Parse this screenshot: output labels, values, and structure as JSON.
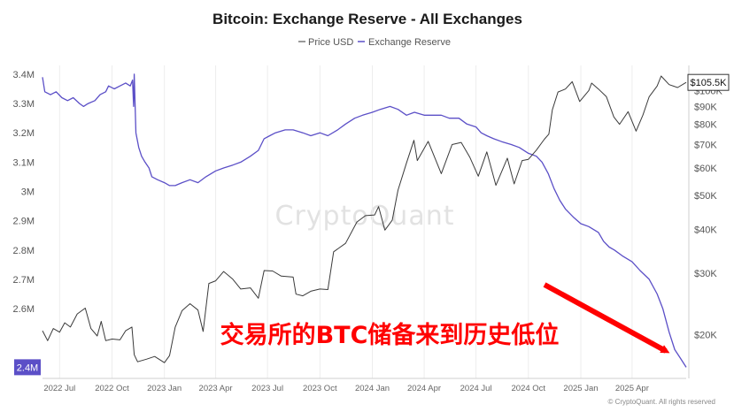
{
  "chart_data": {
    "type": "line",
    "title": "Bitcoin: Exchange Reserve - All Exchanges",
    "legend": [
      "Price USD",
      "Exchange Reserve"
    ],
    "legend_position": "top-center",
    "x_range": [
      "2022-06-01",
      "2025-07-05"
    ],
    "x_ticks": [
      {
        "date": "2022-07-01",
        "label": "2022 Jul"
      },
      {
        "date": "2022-10-01",
        "label": "2022 Oct"
      },
      {
        "date": "2023-01-01",
        "label": "2023 Jan"
      },
      {
        "date": "2023-04-01",
        "label": "2023 Apr"
      },
      {
        "date": "2023-07-01",
        "label": "2023 Jul"
      },
      {
        "date": "2023-10-01",
        "label": "2023 Oct"
      },
      {
        "date": "2024-01-01",
        "label": "2024 Jan"
      },
      {
        "date": "2024-04-01",
        "label": "2024 Apr"
      },
      {
        "date": "2024-07-01",
        "label": "2024 Jul"
      },
      {
        "date": "2024-10-01",
        "label": "2024 Oct"
      },
      {
        "date": "2025-01-01",
        "label": "2025 Jan"
      },
      {
        "date": "2025-04-01",
        "label": "2025 Apr"
      }
    ],
    "y_left": {
      "range": [
        2.38,
        3.43
      ],
      "ticks": [
        {
          "value": 3.4,
          "label": "3.4M"
        },
        {
          "value": 3.3,
          "label": "3.3M"
        },
        {
          "value": 3.2,
          "label": "3.2M"
        },
        {
          "value": 3.1,
          "label": "3.1M"
        },
        {
          "value": 3.0,
          "label": "3M"
        },
        {
          "value": 2.9,
          "label": "2.9M"
        },
        {
          "value": 2.8,
          "label": "2.8M"
        },
        {
          "value": 2.7,
          "label": "2.7M"
        },
        {
          "value": 2.6,
          "label": "2.6M"
        }
      ]
    },
    "y_right": {
      "scale": "log",
      "range": [
        15500,
        118000
      ],
      "ticks": [
        {
          "value": 100000,
          "label": "$100K"
        },
        {
          "value": 90000,
          "label": "$90K"
        },
        {
          "value": 80000,
          "label": "$80K"
        },
        {
          "value": 70000,
          "label": "$70K"
        },
        {
          "value": 60000,
          "label": "$60K"
        },
        {
          "value": 50000,
          "label": "$50K"
        },
        {
          "value": 40000,
          "label": "$40K"
        },
        {
          "value": 30000,
          "label": "$30K"
        },
        {
          "value": 20000,
          "label": "$20K"
        }
      ]
    },
    "current_price_label": "$105.5K",
    "current_reserve_label": "2.4M",
    "series": [
      {
        "name": "Exchange Reserve",
        "color": "#5b4fc7",
        "axis": "left",
        "points": [
          [
            "2022-06-01",
            3.39
          ],
          [
            "2022-06-05",
            3.34
          ],
          [
            "2022-06-15",
            3.33
          ],
          [
            "2022-06-25",
            3.34
          ],
          [
            "2022-07-05",
            3.32
          ],
          [
            "2022-07-15",
            3.31
          ],
          [
            "2022-07-25",
            3.32
          ],
          [
            "2022-08-05",
            3.3
          ],
          [
            "2022-08-12",
            3.29
          ],
          [
            "2022-08-20",
            3.3
          ],
          [
            "2022-09-01",
            3.31
          ],
          [
            "2022-09-10",
            3.33
          ],
          [
            "2022-09-20",
            3.34
          ],
          [
            "2022-09-25",
            3.36
          ],
          [
            "2022-10-05",
            3.35
          ],
          [
            "2022-10-15",
            3.36
          ],
          [
            "2022-10-25",
            3.37
          ],
          [
            "2022-11-02",
            3.36
          ],
          [
            "2022-11-06",
            3.38
          ],
          [
            "2022-11-08",
            3.29
          ],
          [
            "2022-11-09",
            3.4
          ],
          [
            "2022-11-12",
            3.2
          ],
          [
            "2022-11-17",
            3.15
          ],
          [
            "2022-11-22",
            3.12
          ],
          [
            "2022-11-28",
            3.1
          ],
          [
            "2022-12-05",
            3.08
          ],
          [
            "2022-12-10",
            3.05
          ],
          [
            "2022-12-20",
            3.04
          ],
          [
            "2023-01-01",
            3.03
          ],
          [
            "2023-01-10",
            3.02
          ],
          [
            "2023-01-20",
            3.02
          ],
          [
            "2023-02-01",
            3.03
          ],
          [
            "2023-02-15",
            3.04
          ],
          [
            "2023-03-01",
            3.03
          ],
          [
            "2023-03-15",
            3.05
          ],
          [
            "2023-04-01",
            3.07
          ],
          [
            "2023-04-15",
            3.08
          ],
          [
            "2023-05-01",
            3.09
          ],
          [
            "2023-05-15",
            3.1
          ],
          [
            "2023-06-01",
            3.12
          ],
          [
            "2023-06-15",
            3.14
          ],
          [
            "2023-06-25",
            3.18
          ],
          [
            "2023-07-05",
            3.19
          ],
          [
            "2023-07-15",
            3.2
          ],
          [
            "2023-08-01",
            3.21
          ],
          [
            "2023-08-15",
            3.21
          ],
          [
            "2023-09-01",
            3.2
          ],
          [
            "2023-09-15",
            3.19
          ],
          [
            "2023-10-01",
            3.2
          ],
          [
            "2023-10-15",
            3.19
          ],
          [
            "2023-11-01",
            3.21
          ],
          [
            "2023-11-15",
            3.23
          ],
          [
            "2023-12-01",
            3.25
          ],
          [
            "2023-12-15",
            3.26
          ],
          [
            "2024-01-01",
            3.27
          ],
          [
            "2024-01-15",
            3.28
          ],
          [
            "2024-02-01",
            3.29
          ],
          [
            "2024-02-15",
            3.28
          ],
          [
            "2024-03-01",
            3.26
          ],
          [
            "2024-03-15",
            3.27
          ],
          [
            "2024-04-01",
            3.26
          ],
          [
            "2024-04-15",
            3.26
          ],
          [
            "2024-05-01",
            3.26
          ],
          [
            "2024-05-15",
            3.25
          ],
          [
            "2024-06-01",
            3.25
          ],
          [
            "2024-06-15",
            3.23
          ],
          [
            "2024-07-01",
            3.22
          ],
          [
            "2024-07-10",
            3.2
          ],
          [
            "2024-07-20",
            3.19
          ],
          [
            "2024-08-01",
            3.18
          ],
          [
            "2024-08-15",
            3.17
          ],
          [
            "2024-09-01",
            3.16
          ],
          [
            "2024-09-15",
            3.15
          ],
          [
            "2024-10-01",
            3.13
          ],
          [
            "2024-10-15",
            3.12
          ],
          [
            "2024-10-25",
            3.1
          ],
          [
            "2024-11-05",
            3.06
          ],
          [
            "2024-11-15",
            3.01
          ],
          [
            "2024-11-25",
            2.97
          ],
          [
            "2024-12-05",
            2.94
          ],
          [
            "2024-12-20",
            2.91
          ],
          [
            "2025-01-01",
            2.89
          ],
          [
            "2025-01-15",
            2.88
          ],
          [
            "2025-02-01",
            2.86
          ],
          [
            "2025-02-10",
            2.83
          ],
          [
            "2025-02-20",
            2.81
          ],
          [
            "2025-03-01",
            2.8
          ],
          [
            "2025-03-15",
            2.78
          ],
          [
            "2025-04-01",
            2.76
          ],
          [
            "2025-04-15",
            2.73
          ],
          [
            "2025-05-01",
            2.7
          ],
          [
            "2025-05-15",
            2.65
          ],
          [
            "2025-05-25",
            2.6
          ],
          [
            "2025-06-05",
            2.52
          ],
          [
            "2025-06-15",
            2.46
          ],
          [
            "2025-06-25",
            2.43
          ],
          [
            "2025-07-05",
            2.4
          ]
        ]
      },
      {
        "name": "Price USD",
        "color": "#3a3a3a",
        "axis": "right",
        "points": [
          [
            "2022-06-01",
            20500
          ],
          [
            "2022-06-10",
            19200
          ],
          [
            "2022-06-20",
            20800
          ],
          [
            "2022-07-01",
            20300
          ],
          [
            "2022-07-10",
            21600
          ],
          [
            "2022-07-20",
            21000
          ],
          [
            "2022-08-01",
            22900
          ],
          [
            "2022-08-15",
            23800
          ],
          [
            "2022-08-25",
            20800
          ],
          [
            "2022-09-05",
            19800
          ],
          [
            "2022-09-12",
            21800
          ],
          [
            "2022-09-20",
            19200
          ],
          [
            "2022-10-01",
            19400
          ],
          [
            "2022-10-15",
            19300
          ],
          [
            "2022-10-25",
            20500
          ],
          [
            "2022-11-05",
            21000
          ],
          [
            "2022-11-09",
            17500
          ],
          [
            "2022-11-15",
            16700
          ],
          [
            "2022-12-01",
            17000
          ],
          [
            "2022-12-15",
            17300
          ],
          [
            "2023-01-01",
            16600
          ],
          [
            "2023-01-10",
            17400
          ],
          [
            "2023-01-20",
            21000
          ],
          [
            "2023-02-01",
            23400
          ],
          [
            "2023-02-15",
            24500
          ],
          [
            "2023-03-01",
            23500
          ],
          [
            "2023-03-10",
            20400
          ],
          [
            "2023-03-20",
            28000
          ],
          [
            "2023-04-01",
            28500
          ],
          [
            "2023-04-15",
            30300
          ],
          [
            "2023-05-01",
            28800
          ],
          [
            "2023-05-15",
            27000
          ],
          [
            "2023-06-01",
            27200
          ],
          [
            "2023-06-15",
            25400
          ],
          [
            "2023-06-25",
            30500
          ],
          [
            "2023-07-10",
            30400
          ],
          [
            "2023-07-25",
            29400
          ],
          [
            "2023-08-15",
            29200
          ],
          [
            "2023-08-20",
            26100
          ],
          [
            "2023-09-01",
            25800
          ],
          [
            "2023-09-15",
            26600
          ],
          [
            "2023-10-01",
            27000
          ],
          [
            "2023-10-15",
            26900
          ],
          [
            "2023-10-25",
            34500
          ],
          [
            "2023-11-15",
            36500
          ],
          [
            "2023-12-05",
            42000
          ],
          [
            "2023-12-20",
            43800
          ],
          [
            "2024-01-05",
            44000
          ],
          [
            "2024-01-12",
            46500
          ],
          [
            "2024-01-23",
            39800
          ],
          [
            "2024-02-05",
            42500
          ],
          [
            "2024-02-15",
            51800
          ],
          [
            "2024-03-01",
            62000
          ],
          [
            "2024-03-14",
            72000
          ],
          [
            "2024-03-20",
            63000
          ],
          [
            "2024-04-08",
            71500
          ],
          [
            "2024-04-20",
            64000
          ],
          [
            "2024-05-01",
            57800
          ],
          [
            "2024-05-20",
            70000
          ],
          [
            "2024-06-05",
            71000
          ],
          [
            "2024-06-20",
            64500
          ],
          [
            "2024-07-05",
            56800
          ],
          [
            "2024-07-20",
            66700
          ],
          [
            "2024-08-05",
            53500
          ],
          [
            "2024-08-25",
            64000
          ],
          [
            "2024-09-06",
            54000
          ],
          [
            "2024-09-20",
            63000
          ],
          [
            "2024-10-01",
            63500
          ],
          [
            "2024-10-15",
            67500
          ],
          [
            "2024-10-29",
            72500
          ],
          [
            "2024-11-06",
            75000
          ],
          [
            "2024-11-12",
            88000
          ],
          [
            "2024-11-22",
            99000
          ],
          [
            "2024-12-05",
            101000
          ],
          [
            "2024-12-17",
            106000
          ],
          [
            "2024-12-30",
            93000
          ],
          [
            "2025-01-15",
            100000
          ],
          [
            "2025-01-20",
            105000
          ],
          [
            "2025-02-01",
            101000
          ],
          [
            "2025-02-15",
            96000
          ],
          [
            "2025-02-28",
            84000
          ],
          [
            "2025-03-10",
            80000
          ],
          [
            "2025-03-25",
            87000
          ],
          [
            "2025-04-08",
            76500
          ],
          [
            "2025-04-20",
            85000
          ],
          [
            "2025-05-01",
            96000
          ],
          [
            "2025-05-15",
            103000
          ],
          [
            "2025-05-22",
            110000
          ],
          [
            "2025-06-05",
            104000
          ],
          [
            "2025-06-20",
            102000
          ],
          [
            "2025-07-05",
            105500
          ]
        ]
      }
    ],
    "annotation": {
      "text": "交易所的BTC储备来到历史低位",
      "color": "#ff0000"
    },
    "arrow_color": "#ff0000"
  },
  "watermark": "CryptoQuant",
  "credit": "© CryptoQuant. All rights reserved"
}
